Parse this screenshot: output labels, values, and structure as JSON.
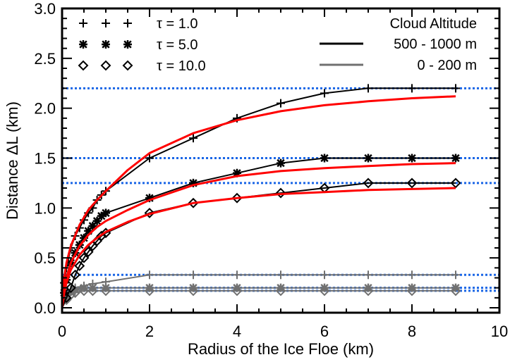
{
  "chart_data": {
    "type": "line",
    "title": "",
    "xlabel": "Radius of the Ice Floe (km)",
    "ylabel": "Distance ΔL (km)",
    "xlim": [
      0,
      10
    ],
    "ylim": [
      -0.05,
      3.0
    ],
    "xticks": [
      "0",
      "2",
      "4",
      "6",
      "8",
      "10"
    ],
    "yticks": [
      "0.0",
      "0.5",
      "1.0",
      "1.5",
      "2.0",
      "2.5",
      "3.0"
    ],
    "grid": false,
    "legend_markers": {
      "position": "upper-left",
      "entries": [
        {
          "symbol": "plus",
          "label": "τ =   1.0"
        },
        {
          "symbol": "asterisk",
          "label": "τ =   5.0"
        },
        {
          "symbol": "diamond",
          "label": "τ = 10.0"
        }
      ]
    },
    "legend_lines": {
      "position": "upper-right",
      "title": "Cloud Altitude",
      "entries": [
        {
          "color": "#000000",
          "label": "500 - 1000 m"
        },
        {
          "color": "#707070",
          "label": "0 -   200 m"
        }
      ]
    },
    "reference_lines": {
      "color": "#1a66e6",
      "style": "dotted",
      "y": [
        2.2,
        1.5,
        1.25,
        0.33,
        0.2,
        0.17
      ]
    },
    "series": [
      {
        "name": "τ=1.0, 500-1000 m",
        "color": "#000000",
        "marker": "plus",
        "x": [
          0,
          0.05,
          0.1,
          0.2,
          0.3,
          0.4,
          0.5,
          0.6,
          0.7,
          0.8,
          0.9,
          1.0,
          2.0,
          3.0,
          4.0,
          5.0,
          6.0,
          7.0,
          8.0,
          9.0
        ],
        "y": [
          0,
          0.25,
          0.4,
          0.6,
          0.72,
          0.8,
          0.88,
          0.95,
          1.0,
          1.08,
          1.13,
          1.17,
          1.5,
          1.7,
          1.9,
          2.05,
          2.15,
          2.2,
          2.2,
          2.2
        ]
      },
      {
        "name": "τ=5.0, 500-1000 m",
        "color": "#000000",
        "marker": "asterisk",
        "x": [
          0,
          0.05,
          0.1,
          0.2,
          0.3,
          0.4,
          0.5,
          0.6,
          0.7,
          0.8,
          0.9,
          1.0,
          2.0,
          3.0,
          4.0,
          5.0,
          6.0,
          7.0,
          8.0,
          9.0
        ],
        "y": [
          0,
          0.15,
          0.28,
          0.45,
          0.55,
          0.63,
          0.7,
          0.77,
          0.82,
          0.87,
          0.92,
          0.95,
          1.1,
          1.25,
          1.35,
          1.45,
          1.5,
          1.5,
          1.5,
          1.5
        ]
      },
      {
        "name": "τ=10.0, 500-1000 m",
        "color": "#000000",
        "marker": "diamond",
        "x": [
          0,
          0.1,
          0.2,
          0.3,
          0.4,
          0.5,
          0.6,
          0.7,
          0.8,
          0.9,
          1.0,
          2.0,
          3.0,
          4.0,
          5.0,
          6.0,
          7.0,
          8.0,
          9.0
        ],
        "y": [
          0,
          0.1,
          0.2,
          0.33,
          0.42,
          0.5,
          0.56,
          0.62,
          0.67,
          0.72,
          0.75,
          0.95,
          1.05,
          1.1,
          1.15,
          1.2,
          1.25,
          1.25,
          1.25
        ]
      },
      {
        "name": "τ=1.0, 0-200 m",
        "color": "#707070",
        "marker": "plus",
        "x": [
          0,
          0.1,
          0.2,
          0.3,
          0.5,
          0.7,
          1.0,
          2.0,
          3.0,
          4.0,
          5.0,
          6.0,
          7.0,
          8.0,
          9.0
        ],
        "y": [
          0,
          0.12,
          0.18,
          0.2,
          0.22,
          0.24,
          0.26,
          0.33,
          0.33,
          0.33,
          0.33,
          0.33,
          0.33,
          0.33,
          0.33
        ]
      },
      {
        "name": "τ=5.0, 0-200 m",
        "color": "#707070",
        "marker": "asterisk",
        "x": [
          0,
          0.1,
          0.2,
          0.3,
          0.5,
          0.7,
          1.0,
          2.0,
          3.0,
          4.0,
          5.0,
          6.0,
          7.0,
          8.0,
          9.0
        ],
        "y": [
          0,
          0.1,
          0.16,
          0.18,
          0.2,
          0.2,
          0.2,
          0.2,
          0.2,
          0.2,
          0.2,
          0.2,
          0.2,
          0.2,
          0.2
        ]
      },
      {
        "name": "τ=10.0, 0-200 m",
        "color": "#707070",
        "marker": "diamond",
        "x": [
          0,
          0.1,
          0.2,
          0.3,
          0.5,
          0.7,
          1.0,
          2.0,
          3.0,
          4.0,
          5.0,
          6.0,
          7.0,
          8.0,
          9.0
        ],
        "y": [
          0,
          0.08,
          0.13,
          0.15,
          0.17,
          0.17,
          0.17,
          0.17,
          0.17,
          0.17,
          0.17,
          0.17,
          0.17,
          0.17,
          0.17
        ]
      },
      {
        "name": "fit τ=1.0",
        "color": "#ff0000",
        "marker": "none",
        "x": [
          0,
          0.05,
          0.1,
          0.2,
          0.4,
          0.6,
          0.8,
          1.0,
          1.5,
          2.0,
          3.0,
          4.0,
          5.0,
          6.0,
          7.0,
          8.0,
          9.0
        ],
        "y": [
          0,
          0.3,
          0.45,
          0.62,
          0.83,
          0.98,
          1.08,
          1.17,
          1.38,
          1.55,
          1.75,
          1.88,
          1.97,
          2.03,
          2.07,
          2.1,
          2.12
        ]
      },
      {
        "name": "fit τ=5.0",
        "color": "#ff0000",
        "marker": "none",
        "x": [
          0,
          0.05,
          0.1,
          0.2,
          0.4,
          0.6,
          0.8,
          1.0,
          1.5,
          2.0,
          3.0,
          4.0,
          5.0,
          6.0,
          7.0,
          8.0,
          9.0
        ],
        "y": [
          0,
          0.2,
          0.3,
          0.45,
          0.62,
          0.73,
          0.81,
          0.87,
          0.98,
          1.08,
          1.23,
          1.32,
          1.37,
          1.4,
          1.42,
          1.44,
          1.45
        ]
      },
      {
        "name": "fit τ=10.0",
        "color": "#ff0000",
        "marker": "none",
        "x": [
          0,
          0.05,
          0.1,
          0.2,
          0.4,
          0.6,
          0.8,
          1.0,
          1.5,
          2.0,
          3.0,
          4.0,
          5.0,
          6.0,
          7.0,
          8.0,
          9.0
        ],
        "y": [
          0,
          0.15,
          0.25,
          0.38,
          0.53,
          0.63,
          0.7,
          0.76,
          0.86,
          0.94,
          1.05,
          1.1,
          1.14,
          1.16,
          1.18,
          1.19,
          1.2
        ]
      }
    ]
  }
}
